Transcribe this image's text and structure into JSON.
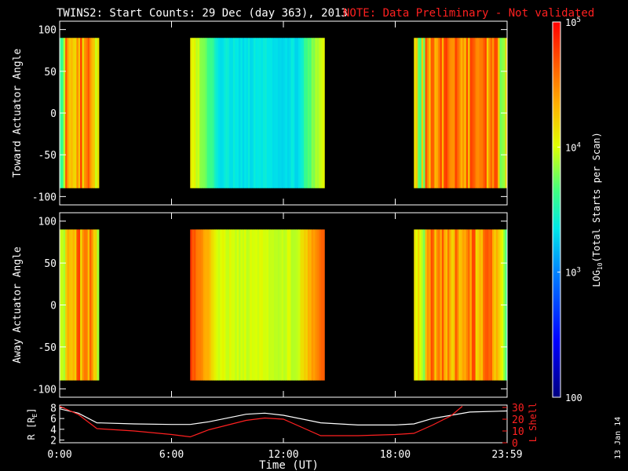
{
  "chart_data": {
    "type": "heatmap",
    "title": "TWINS2: Start Counts: 29 Dec (day 363), 2013",
    "note": "NOTE: Data Preliminary - Not validated",
    "side_stamp": "13 Jan 14",
    "xlabel": "Time (UT)",
    "x_ticks": [
      "0:00",
      "6:00",
      "12:00",
      "18:00",
      "23:59"
    ],
    "xlim_hours": [
      0,
      24
    ],
    "colorbar": {
      "label": "LOG10(Total Starts per Scan)",
      "label_main": "LOG",
      "label_sub": "10",
      "label_tail": "(Total Starts per Scan)",
      "ticks": [
        {
          "value": 100,
          "text": "100"
        },
        {
          "value": 1000,
          "text": "10",
          "sup": "3"
        },
        {
          "value": 10000,
          "text": "10",
          "sup": "4"
        },
        {
          "value": 100000,
          "text": "10",
          "sup": "5"
        }
      ],
      "range": [
        100,
        100000
      ],
      "scale": "log"
    },
    "panels": [
      {
        "ylabel": "Toward Actuator Angle",
        "y_ticks": [
          "-100",
          "-50",
          "0",
          "50",
          "100"
        ],
        "ylim": [
          -110,
          110
        ],
        "data_ylim": [
          -90,
          90
        ],
        "intervals": [
          {
            "start": 0.0,
            "end": 2.05,
            "level": "high"
          },
          {
            "start": 7.0,
            "end": 14.2,
            "level": "low"
          },
          {
            "start": 19.0,
            "end": 24.0,
            "level": "high"
          }
        ]
      },
      {
        "ylabel": "Away Actuator Angle",
        "y_ticks": [
          "-100",
          "-50",
          "0",
          "50",
          "100"
        ],
        "ylim": [
          -110,
          110
        ],
        "data_ylim": [
          -90,
          90
        ],
        "intervals": [
          {
            "start": 0.0,
            "end": 2.05,
            "level": "high"
          },
          {
            "start": 7.0,
            "end": 14.2,
            "level": "mid"
          },
          {
            "start": 19.0,
            "end": 24.0,
            "level": "high"
          }
        ]
      }
    ],
    "orbit_panel": {
      "left_label": "R [R",
      "left_label_sub": "E",
      "left_label_tail": "]",
      "left_ticks": [
        "2",
        "4",
        "6",
        "8"
      ],
      "left_ylim": [
        1.5,
        8.5
      ],
      "right_label": "L Shell",
      "right_ticks": [
        "0",
        "10",
        "20",
        "30"
      ],
      "right_ylim": [
        0,
        32
      ],
      "series": [
        {
          "name": "R",
          "color": "#ffffff",
          "x": [
            0,
            1,
            2,
            4,
            6,
            7,
            8,
            10,
            11,
            12,
            14,
            16,
            18,
            19,
            20,
            22,
            24
          ],
          "y": [
            7.8,
            7.0,
            5.2,
            5.0,
            4.9,
            4.9,
            5.4,
            6.8,
            7.0,
            6.6,
            5.2,
            4.8,
            4.8,
            5.0,
            6.0,
            7.2,
            7.4
          ]
        },
        {
          "name": "L Shell",
          "color": "#ff2020",
          "x": [
            0,
            1,
            2,
            4,
            6,
            7,
            8,
            10,
            11,
            12,
            13,
            14,
            16,
            18,
            19,
            20,
            21,
            21.6
          ],
          "y": [
            31,
            24,
            12,
            10,
            7,
            5,
            11,
            19,
            21,
            20,
            13,
            6,
            6,
            7,
            8,
            15,
            23,
            31
          ]
        }
      ]
    },
    "colors": {
      "accent": "#ff2020",
      "background": "#000000",
      "axes": "#ffffff"
    }
  }
}
